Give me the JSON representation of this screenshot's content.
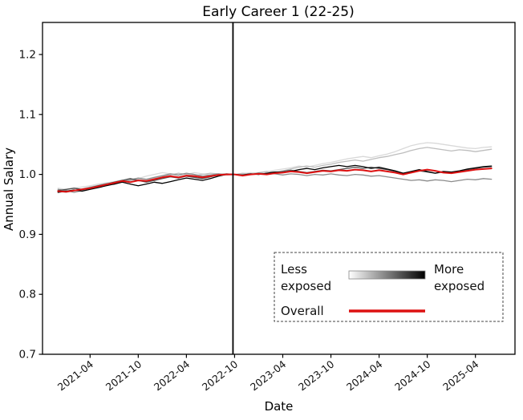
{
  "figure": {
    "title": "Early Career 1 (22-25)",
    "xlabel": "Date",
    "ylabel": "Annual Salary"
  },
  "legend": {
    "less_line1": "Less",
    "less_line2": "exposed",
    "more_line1": "More",
    "more_line2": "exposed",
    "overall_label": "Overall",
    "gradient_from": "#ffffff",
    "gradient_to": "#000000",
    "overall_color": "#dd1111"
  },
  "chart_data": {
    "type": "line",
    "title": "Early Career 1 (22-25)",
    "xlabel": "Date",
    "ylabel": "Annual Salary",
    "ylim": [
      0.7,
      1.2535
    ],
    "grid": false,
    "legend_position": "lower right",
    "yticks": [
      "0.7",
      "0.8",
      "0.9",
      "1.0",
      "1.1",
      "1.2"
    ],
    "xticks": [
      "2021-04",
      "2021-10",
      "2022-04",
      "2022-10",
      "2023-04",
      "2023-10",
      "2024-04",
      "2024-10",
      "2025-04"
    ],
    "vline_x": "2022-10",
    "x": [
      "2020-12",
      "2021-01",
      "2021-02",
      "2021-03",
      "2021-04",
      "2021-05",
      "2021-06",
      "2021-07",
      "2021-08",
      "2021-09",
      "2021-10",
      "2021-11",
      "2021-12",
      "2022-01",
      "2022-02",
      "2022-03",
      "2022-04",
      "2022-05",
      "2022-06",
      "2022-07",
      "2022-08",
      "2022-09",
      "2022-10",
      "2022-11",
      "2022-12",
      "2023-01",
      "2023-02",
      "2023-03",
      "2023-04",
      "2023-05",
      "2023-06",
      "2023-07",
      "2023-08",
      "2023-09",
      "2023-10",
      "2023-11",
      "2023-12",
      "2024-01",
      "2024-02",
      "2024-03",
      "2024-04",
      "2024-05",
      "2024-06",
      "2024-07",
      "2024-08",
      "2024-09",
      "2024-10",
      "2024-11",
      "2024-12",
      "2025-01",
      "2025-02",
      "2025-03",
      "2025-04",
      "2025-05",
      "2025-06"
    ],
    "series": [
      {
        "name": "exposure-quintile-1-least",
        "color": "#d9d9d9",
        "width": 1.3,
        "values": [
          0.977,
          0.975,
          0.977,
          0.979,
          0.981,
          0.984,
          0.986,
          0.988,
          0.991,
          0.989,
          0.993,
          0.997,
          1.0,
          1.003,
          1.001,
          0.998,
          1.0,
          1.003,
          1.001,
          0.999,
          1.0,
          0.999,
          1.0,
          1.001,
          1.003,
          1.002,
          1.004,
          1.007,
          1.009,
          1.011,
          1.014,
          1.012,
          1.015,
          1.018,
          1.02,
          1.023,
          1.026,
          1.028,
          1.03,
          1.028,
          1.031,
          1.034,
          1.038,
          1.043,
          1.048,
          1.051,
          1.053,
          1.052,
          1.05,
          1.048,
          1.046,
          1.044,
          1.043,
          1.045,
          1.046
        ]
      },
      {
        "name": "exposure-quintile-2",
        "color": "#bdbdbd",
        "width": 1.3,
        "values": [
          0.972,
          0.97,
          0.973,
          0.976,
          0.979,
          0.982,
          0.985,
          0.983,
          0.987,
          0.99,
          0.992,
          0.99,
          0.994,
          0.997,
          0.999,
          1.002,
          1.0,
          0.998,
          1.0,
          1.002,
          1.001,
          0.999,
          1.0,
          1.002,
          1.001,
          1.003,
          1.005,
          1.004,
          1.006,
          1.009,
          1.012,
          1.014,
          1.012,
          1.015,
          1.017,
          1.02,
          1.022,
          1.024,
          1.022,
          1.025,
          1.028,
          1.03,
          1.033,
          1.036,
          1.04,
          1.043,
          1.045,
          1.043,
          1.041,
          1.039,
          1.041,
          1.04,
          1.038,
          1.04,
          1.042
        ]
      },
      {
        "name": "exposure-quintile-3",
        "color": "#8c8c8c",
        "width": 1.3,
        "values": [
          0.975,
          0.973,
          0.97,
          0.973,
          0.976,
          0.979,
          0.982,
          0.985,
          0.988,
          0.991,
          0.994,
          0.992,
          0.995,
          0.998,
          1.001,
          0.999,
          1.002,
          1.0,
          0.997,
          0.999,
          1.001,
          1.0,
          1.0,
          0.999,
          1.001,
          1.0,
          1.002,
          1.001,
          0.999,
          1.001,
          1.0,
          0.998,
          1.0,
          0.999,
          1.001,
          0.999,
          0.998,
          1.0,
          0.999,
          0.997,
          0.998,
          0.996,
          0.994,
          0.992,
          0.99,
          0.991,
          0.989,
          0.991,
          0.99,
          0.988,
          0.99,
          0.992,
          0.991,
          0.993,
          0.992
        ]
      },
      {
        "name": "exposure-quintile-4",
        "color": "#4d4d4d",
        "width": 1.3,
        "values": [
          0.973,
          0.975,
          0.977,
          0.975,
          0.978,
          0.981,
          0.984,
          0.987,
          0.99,
          0.993,
          0.99,
          0.987,
          0.99,
          0.993,
          0.996,
          0.994,
          0.997,
          0.995,
          0.993,
          0.996,
          0.999,
          1.001,
          1.0,
          0.998,
          1.0,
          1.002,
          1.001,
          1.003,
          1.005,
          1.007,
          1.005,
          1.003,
          1.005,
          1.007,
          1.006,
          1.008,
          1.01,
          1.012,
          1.01,
          1.012,
          1.01,
          1.008,
          1.005,
          1.002,
          1.004,
          1.006,
          1.004,
          1.002,
          1.004,
          1.003,
          1.005,
          1.008,
          1.01,
          1.012,
          1.013
        ]
      },
      {
        "name": "exposure-quintile-5-most",
        "color": "#000000",
        "width": 1.3,
        "values": [
          0.97,
          0.972,
          0.974,
          0.972,
          0.975,
          0.978,
          0.981,
          0.984,
          0.987,
          0.984,
          0.981,
          0.984,
          0.987,
          0.985,
          0.988,
          0.991,
          0.994,
          0.992,
          0.99,
          0.993,
          0.997,
          1.0,
          1.0,
          0.999,
          1.001,
          1.0,
          1.002,
          1.004,
          1.003,
          1.005,
          1.008,
          1.01,
          1.008,
          1.011,
          1.013,
          1.015,
          1.013,
          1.015,
          1.013,
          1.01,
          1.012,
          1.009,
          1.006,
          1.002,
          1.005,
          1.008,
          1.005,
          1.002,
          1.005,
          1.004,
          1.006,
          1.009,
          1.011,
          1.013,
          1.014
        ]
      },
      {
        "name": "overall",
        "color": "#dd1111",
        "width": 2.0,
        "values": [
          0.972,
          0.971,
          0.973,
          0.975,
          0.977,
          0.98,
          0.983,
          0.986,
          0.989,
          0.987,
          0.99,
          0.989,
          0.992,
          0.995,
          0.997,
          0.995,
          0.998,
          0.997,
          0.995,
          0.997,
          0.999,
          1.0,
          1.0,
          0.998,
          1.0,
          1.001,
          1.0,
          1.002,
          1.003,
          1.005,
          1.004,
          1.002,
          1.004,
          1.006,
          1.005,
          1.007,
          1.006,
          1.008,
          1.007,
          1.005,
          1.007,
          1.005,
          1.003,
          1.0,
          1.003,
          1.006,
          1.008,
          1.006,
          1.003,
          1.002,
          1.004,
          1.006,
          1.008,
          1.009,
          1.01
        ]
      }
    ]
  }
}
